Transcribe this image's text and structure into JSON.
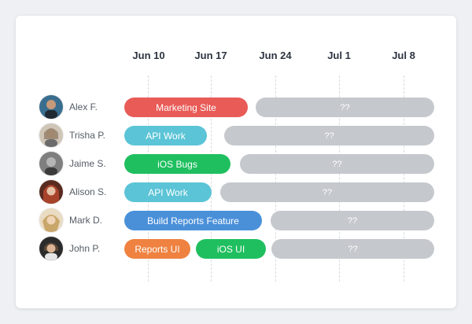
{
  "dates": [
    "Jun 10",
    "Jun 17",
    "Jun 24",
    "Jul 1",
    "Jul 8"
  ],
  "rows": [
    {
      "name": "Alex F.",
      "avatar_icon": "user-avatar-icon",
      "tasks": [
        {
          "label": "Marketing Site",
          "color": "#e85b57"
        },
        {
          "label": "??",
          "color": "#c5c8cd"
        }
      ]
    },
    {
      "name": "Trisha P.",
      "avatar_icon": "user-avatar-icon",
      "tasks": [
        {
          "label": "API Work",
          "color": "#5bc4d6"
        },
        {
          "label": "??",
          "color": "#c5c8cd"
        }
      ]
    },
    {
      "name": "Jaime S.",
      "avatar_icon": "user-avatar-icon",
      "tasks": [
        {
          "label": "iOS Bugs",
          "color": "#1fbf5f"
        },
        {
          "label": "??",
          "color": "#c5c8cd"
        }
      ]
    },
    {
      "name": "Alison S.",
      "avatar_icon": "user-avatar-icon",
      "tasks": [
        {
          "label": "API Work",
          "color": "#5bc4d6"
        },
        {
          "label": "??",
          "color": "#c5c8cd"
        }
      ]
    },
    {
      "name": "Mark D.",
      "avatar_icon": "user-avatar-icon",
      "tasks": [
        {
          "label": "Build Reports Feature",
          "color": "#4a90d9"
        },
        {
          "label": "??",
          "color": "#c5c8cd"
        }
      ]
    },
    {
      "name": "John P.",
      "avatar_icon": "user-avatar-icon",
      "tasks": [
        {
          "label": "Reports UI",
          "color": "#ef8240"
        },
        {
          "label": "iOS UI",
          "color": "#1fbf5f"
        },
        {
          "label": "??",
          "color": "#c5c8cd"
        }
      ]
    }
  ]
}
